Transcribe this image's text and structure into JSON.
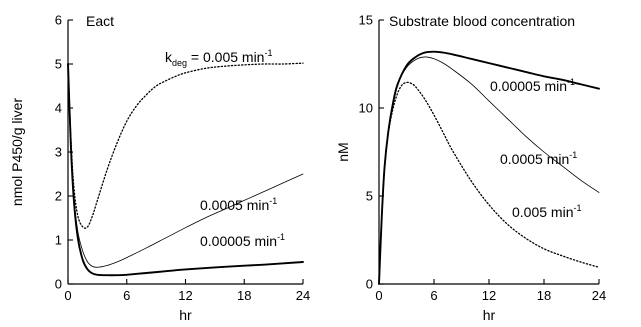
{
  "chart_data": [
    {
      "type": "line",
      "title": "Eact",
      "xlabel": "hr",
      "ylabel": "nmol P450/g liver",
      "xlim": [
        0,
        24
      ],
      "ylim": [
        0,
        6
      ],
      "xticks": [
        0,
        6,
        12,
        18,
        24
      ],
      "yticks": [
        0,
        1,
        2,
        3,
        4,
        5,
        6
      ],
      "grid": false,
      "series": [
        {
          "label_prefix": "k",
          "label_sub": "deg",
          "label_rate": " = 0.005 min",
          "label_exp": "-1",
          "style": "dotted",
          "x": [
            0,
            0.3,
            0.6,
            1.0,
            1.5,
            2.0,
            2.5,
            3.0,
            4.0,
            5.0,
            6.0,
            7.0,
            8.0,
            9.0,
            10.0,
            11.0,
            12.0,
            14.0,
            16.0,
            18.0,
            20.0,
            22.0,
            24.0
          ],
          "y": [
            5.0,
            3.3,
            2.2,
            1.55,
            1.3,
            1.3,
            1.55,
            1.9,
            2.6,
            3.2,
            3.7,
            4.05,
            4.3,
            4.5,
            4.62,
            4.72,
            4.8,
            4.9,
            4.95,
            4.98,
            5.0,
            5.0,
            5.02
          ]
        },
        {
          "label_rate": "0.0005 min",
          "label_exp": "-1",
          "style": "thin",
          "x": [
            0,
            0.3,
            0.6,
            1.0,
            1.5,
            2.0,
            2.5,
            3.0,
            4.0,
            5.0,
            6.0,
            8.0,
            10.0,
            12.0,
            14.0,
            16.0,
            18.0,
            20.0,
            22.0,
            24.0
          ],
          "y": [
            5.0,
            3.2,
            2.0,
            1.2,
            0.75,
            0.5,
            0.4,
            0.38,
            0.42,
            0.5,
            0.6,
            0.82,
            1.05,
            1.28,
            1.5,
            1.7,
            1.9,
            2.1,
            2.3,
            2.5
          ]
        },
        {
          "label_rate": "0.00005 min",
          "label_exp": "-1",
          "style": "thick",
          "x": [
            0,
            0.3,
            0.6,
            1.0,
            1.5,
            2.0,
            2.5,
            3.0,
            4.0,
            5.0,
            6.0,
            8.0,
            10.0,
            12.0,
            16.0,
            20.0,
            24.0
          ],
          "y": [
            5.0,
            3.1,
            1.9,
            1.05,
            0.55,
            0.33,
            0.24,
            0.21,
            0.2,
            0.2,
            0.21,
            0.25,
            0.29,
            0.33,
            0.39,
            0.44,
            0.5
          ]
        }
      ]
    },
    {
      "type": "line",
      "title": "Substrate blood concentration",
      "xlabel": "hr",
      "ylabel": "nM",
      "xlim": [
        0,
        24
      ],
      "ylim": [
        0,
        15
      ],
      "xticks": [
        0,
        6,
        12,
        18,
        24
      ],
      "yticks": [
        0,
        5,
        10,
        15
      ],
      "grid": false,
      "series": [
        {
          "label_rate": "0.00005 min",
          "label_exp": "-1",
          "style": "thick",
          "x": [
            0,
            0.3,
            0.6,
            1.0,
            1.5,
            2.0,
            3.0,
            4.0,
            5.0,
            6.0,
            7.0,
            8.0,
            10.0,
            12.0,
            14.0,
            16.0,
            18.0,
            20.0,
            22.0,
            24.0
          ],
          "y": [
            0,
            3.8,
            6.6,
            8.6,
            10.2,
            11.3,
            12.4,
            12.9,
            13.15,
            13.2,
            13.15,
            13.05,
            12.8,
            12.55,
            12.3,
            12.05,
            11.8,
            11.6,
            11.35,
            11.1
          ]
        },
        {
          "label_rate": "0.0005 min",
          "label_exp": "-1",
          "style": "thin",
          "x": [
            0,
            0.3,
            0.6,
            1.0,
            1.5,
            2.0,
            3.0,
            4.0,
            5.0,
            6.0,
            7.0,
            8.0,
            10.0,
            12.0,
            14.0,
            16.0,
            18.0,
            20.0,
            22.0,
            24.0
          ],
          "y": [
            0,
            3.8,
            6.6,
            8.6,
            10.2,
            11.3,
            12.3,
            12.75,
            12.9,
            12.8,
            12.55,
            12.2,
            11.4,
            10.4,
            9.4,
            8.4,
            7.5,
            6.7,
            5.9,
            5.2
          ]
        },
        {
          "label_rate": "0.005 min",
          "label_exp": "-1",
          "style": "dotted",
          "x": [
            0,
            0.3,
            0.6,
            1.0,
            1.5,
            2.0,
            2.5,
            3.0,
            3.5,
            4.0,
            5.0,
            6.0,
            7.0,
            8.0,
            10.0,
            12.0,
            14.0,
            16.0,
            18.0,
            20.0,
            22.0,
            24.0
          ],
          "y": [
            0,
            3.8,
            6.5,
            8.5,
            9.9,
            10.8,
            11.3,
            11.45,
            11.4,
            11.2,
            10.5,
            9.6,
            8.6,
            7.6,
            5.9,
            4.5,
            3.4,
            2.6,
            2.0,
            1.6,
            1.25,
            0.95
          ]
        }
      ]
    }
  ]
}
